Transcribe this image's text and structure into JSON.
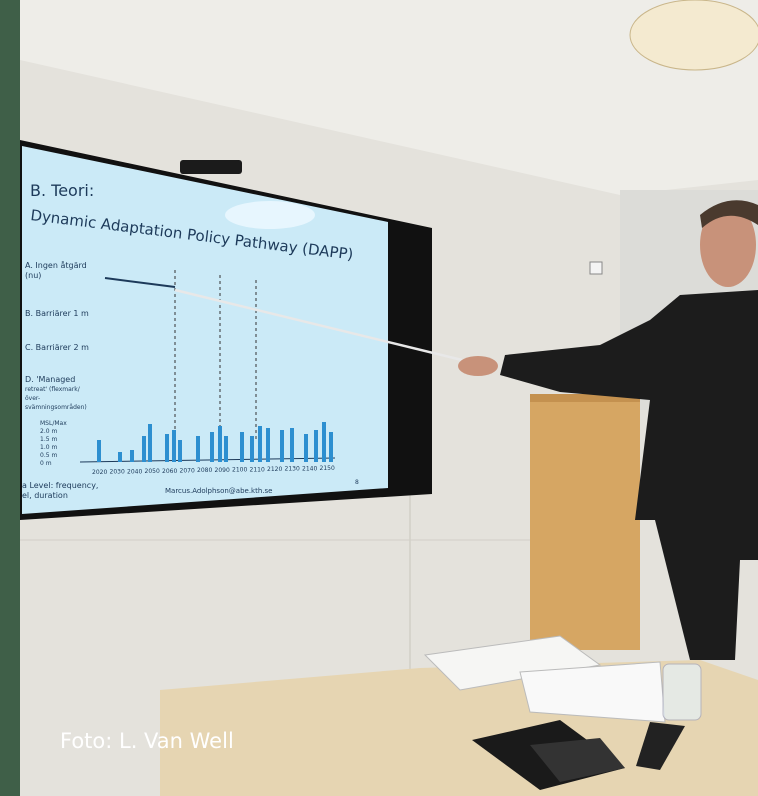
{
  "slide": {
    "heading": "B. Teori:",
    "title": "Dynamic Adaptation Policy Pathway (DAPP)",
    "options": [
      [
        "A. Ingen åtgärd",
        "(nu)"
      ],
      [
        "B. Barriärer 1 m"
      ],
      [
        "C. Barriärer 2 m"
      ],
      [
        "D. 'Managed",
        "retreat' (flexmark/",
        "över-",
        "svämningsområden)"
      ]
    ],
    "y_axis_title": "MSL/Max",
    "y_labels": [
      "2.0 m",
      "1.5 m",
      "1.0 m",
      "0.5 m",
      "0 m"
    ],
    "x_labels": [
      "2020",
      "2030",
      "2040",
      "2050",
      "2060",
      "2070",
      "2080",
      "2090",
      "2100",
      "2110",
      "2120",
      "2130",
      "2140",
      "2150"
    ],
    "side_note": [
      "a Level: frequency,",
      "el, duration"
    ],
    "footer": "Marcus.Adolphson@abe.kth.se",
    "page": "8"
  },
  "caption": "Foto: L. Van Well"
}
